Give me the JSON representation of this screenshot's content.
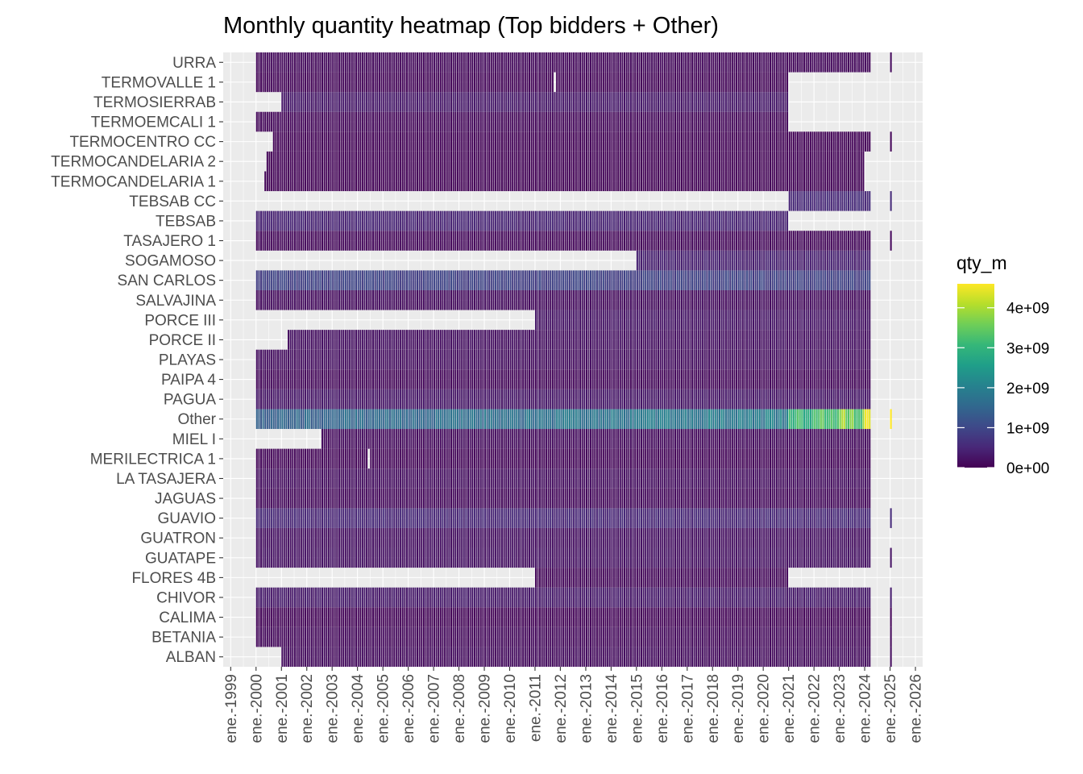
{
  "chart_data": {
    "type": "heatmap",
    "title": "Monthly quantity heatmap (Top bidders + Other)",
    "xlabel": "",
    "ylabel": "",
    "x_range": [
      "1998-09-15",
      "2026-04-15"
    ],
    "x_ticks": [
      {
        "label": "ene.-1999",
        "date": "1999-01-01"
      },
      {
        "label": "ene.-2000",
        "date": "2000-01-01"
      },
      {
        "label": "ene.-2001",
        "date": "2001-01-01"
      },
      {
        "label": "ene.-2002",
        "date": "2002-01-01"
      },
      {
        "label": "ene.-2003",
        "date": "2003-01-01"
      },
      {
        "label": "ene.-2004",
        "date": "2004-01-01"
      },
      {
        "label": "ene.-2005",
        "date": "2005-01-01"
      },
      {
        "label": "ene.-2006",
        "date": "2006-01-01"
      },
      {
        "label": "ene.-2007",
        "date": "2007-01-01"
      },
      {
        "label": "ene.-2008",
        "date": "2008-01-01"
      },
      {
        "label": "ene.-2009",
        "date": "2009-01-01"
      },
      {
        "label": "ene.-2010",
        "date": "2010-01-01"
      },
      {
        "label": "ene.-2011",
        "date": "2011-01-01"
      },
      {
        "label": "ene.-2012",
        "date": "2012-01-01"
      },
      {
        "label": "ene.-2013",
        "date": "2013-01-01"
      },
      {
        "label": "ene.-2014",
        "date": "2014-01-01"
      },
      {
        "label": "ene.-2015",
        "date": "2015-01-01"
      },
      {
        "label": "ene.-2016",
        "date": "2016-01-01"
      },
      {
        "label": "ene.-2017",
        "date": "2017-01-01"
      },
      {
        "label": "ene.-2018",
        "date": "2018-01-01"
      },
      {
        "label": "ene.-2019",
        "date": "2019-01-01"
      },
      {
        "label": "ene.-2020",
        "date": "2020-01-01"
      },
      {
        "label": "ene.-2021",
        "date": "2021-01-01"
      },
      {
        "label": "ene.-2022",
        "date": "2022-01-01"
      },
      {
        "label": "ene.-2023",
        "date": "2023-01-01"
      },
      {
        "label": "ene.-2024",
        "date": "2024-01-01"
      },
      {
        "label": "ene.-2025",
        "date": "2025-01-01"
      },
      {
        "label": "ene.-2026",
        "date": "2026-01-01"
      }
    ],
    "y_categories": [
      "ALBAN",
      "BETANIA",
      "CALIMA",
      "CHIVOR",
      "FLORES 4B",
      "GUATAPE",
      "GUATRON",
      "GUAVIO",
      "JAGUAS",
      "LA TASAJERA",
      "MERILECTRICA 1",
      "MIEL I",
      "Other",
      "PAGUA",
      "PAIPA 4",
      "PLAYAS",
      "PORCE II",
      "PORCE III",
      "SALVAJINA",
      "SAN CARLOS",
      "SOGAMOSO",
      "TASAJERO 1",
      "TEBSAB",
      "TEBSAB CC",
      "TERMOCANDELARIA 1",
      "TERMOCANDELARIA 2",
      "TERMOCENTRO CC",
      "TERMOEMCALI 1",
      "TERMOSIERRAB",
      "TERMOVALLE 1",
      "URRA"
    ],
    "rows": [
      {
        "name": "ALBAN",
        "start": "2001-01",
        "end": "2024-03",
        "level": 0.15,
        "extra": [
          "2025-01"
        ]
      },
      {
        "name": "BETANIA",
        "start": "2000-01",
        "end": "2024-03",
        "level": 0.12,
        "extra": [
          "2025-01"
        ]
      },
      {
        "name": "CALIMA",
        "start": "2000-01",
        "end": "2024-03",
        "level": 0.06,
        "extra": [
          "2025-01"
        ]
      },
      {
        "name": "CHIVOR",
        "start": "2000-01",
        "end": "2024-03",
        "level": 0.32,
        "extra": [
          "2025-01"
        ]
      },
      {
        "name": "FLORES 4B",
        "start": "2011-01",
        "end": "2020-12",
        "level": 0.1
      },
      {
        "name": "GUATAPE",
        "start": "2000-01",
        "end": "2024-03",
        "level": 0.22,
        "extra": [
          "2025-01"
        ]
      },
      {
        "name": "GUATRON",
        "start": "2000-01",
        "end": "2024-03",
        "level": 0.2
      },
      {
        "name": "GUAVIO",
        "start": "2000-01",
        "end": "2024-03",
        "level": 0.5,
        "extra": [
          "2025-01"
        ]
      },
      {
        "name": "JAGUAS",
        "start": "2000-01",
        "end": "2024-03",
        "level": 0.12
      },
      {
        "name": "LA TASAJERA",
        "start": "2000-01",
        "end": "2024-03",
        "level": 0.18
      },
      {
        "name": "MERILECTRICA 1",
        "start": "2000-01",
        "end": "2024-03",
        "level": 0.08,
        "gaps": [
          "2004-06"
        ]
      },
      {
        "name": "MIEL I",
        "start": "2002-08",
        "end": "2024-03",
        "level": 0.14
      },
      {
        "name": "Other",
        "start": "2000-01",
        "end": "2024-03",
        "level": 1.5,
        "extra": [
          "2025-01"
        ]
      },
      {
        "name": "PAGUA",
        "start": "2000-01",
        "end": "2024-03",
        "level": 0.28
      },
      {
        "name": "PAIPA 4",
        "start": "2000-01",
        "end": "2024-03",
        "level": 0.1
      },
      {
        "name": "PLAYAS",
        "start": "2000-01",
        "end": "2024-03",
        "level": 0.18
      },
      {
        "name": "PORCE II",
        "start": "2001-04",
        "end": "2024-03",
        "level": 0.2
      },
      {
        "name": "PORCE III",
        "start": "2011-01",
        "end": "2024-03",
        "level": 0.26
      },
      {
        "name": "SALVAJINA",
        "start": "2000-01",
        "end": "2024-03",
        "level": 0.15
      },
      {
        "name": "SAN CARLOS",
        "start": "2000-01",
        "end": "2024-03",
        "level": 0.9
      },
      {
        "name": "SOGAMOSO",
        "start": "2015-01",
        "end": "2024-03",
        "level": 0.4
      },
      {
        "name": "TASAJERO 1",
        "start": "2000-01",
        "end": "2024-03",
        "level": 0.1,
        "extra": [
          "2025-01"
        ]
      },
      {
        "name": "TEBSAB",
        "start": "2000-01",
        "end": "2020-12",
        "level": 0.45
      },
      {
        "name": "TEBSAB CC",
        "start": "2021-01",
        "end": "2024-03",
        "level": 0.55,
        "extra": [
          "2025-01"
        ]
      },
      {
        "name": "TERMOCANDELARIA 1",
        "start": "2000-05",
        "end": "2023-12",
        "level": 0.05
      },
      {
        "name": "TERMOCANDELARIA 2",
        "start": "2000-06",
        "end": "2023-12",
        "level": 0.05
      },
      {
        "name": "TERMOCENTRO CC",
        "start": "2000-09",
        "end": "2024-03",
        "level": 0.05,
        "extra": [
          "2025-01"
        ]
      },
      {
        "name": "TERMOEMCALI 1",
        "start": "2000-01",
        "end": "2020-12",
        "level": 0.1
      },
      {
        "name": "TERMOSIERRAB",
        "start": "2001-01",
        "end": "2020-12",
        "level": 0.3
      },
      {
        "name": "TERMOVALLE 1",
        "start": "2000-01",
        "end": "2020-12",
        "level": 0.08,
        "gaps": [
          "2011-10"
        ]
      },
      {
        "name": "URRA",
        "start": "2000-01",
        "end": "2024-03",
        "level": 0.12,
        "extra": [
          "2025-01"
        ]
      }
    ],
    "legend": {
      "title": "qty_m",
      "position": "right",
      "scale": "viridis",
      "range": [
        0,
        4600000000.0
      ],
      "ticks": [
        {
          "label": "0e+00",
          "value": 0
        },
        {
          "label": "1e+09",
          "value": 1000000000.0
        },
        {
          "label": "2e+09",
          "value": 2000000000.0
        },
        {
          "label": "3e+09",
          "value": 3000000000.0
        },
        {
          "label": "4e+09",
          "value": 4000000000.0
        }
      ]
    },
    "grid": true,
    "colors": {
      "panel_background": "#ebebeb",
      "gridline": "#ffffff",
      "text": "#4d4d4d",
      "title": "#000000",
      "viridis": [
        "#440154",
        "#482878",
        "#3e4989",
        "#31688e",
        "#26828e",
        "#1f9e89",
        "#35b779",
        "#6ece58",
        "#b5de2b",
        "#fde725"
      ]
    }
  }
}
